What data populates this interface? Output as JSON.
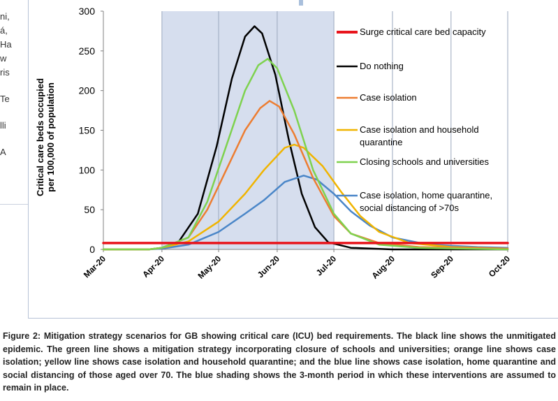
{
  "left_fragments": [
    "ni,",
    "á,",
    "Ha",
    "w",
    "ris",
    "Te",
    "lli",
    "A"
  ],
  "chart_data": {
    "type": "line",
    "title": "",
    "ylabel": "Critical care beds occupied per 100,000 of population",
    "ylabel_lines": [
      "Critical care beds occupied",
      "per 100,000 of population"
    ],
    "xlabel": "",
    "ylim": [
      0,
      300
    ],
    "yticks": [
      0,
      50,
      100,
      150,
      200,
      250,
      300
    ],
    "xlim": [
      "2020-03-01",
      "2020-10-01"
    ],
    "xticks": [
      "Mar-20",
      "Apr-20",
      "May-20",
      "Jun-20",
      "Jul-20",
      "Aug-20",
      "Sep-20",
      "Oct-20"
    ],
    "shaded_period": {
      "start": "2020-04-01",
      "end": "2020-07-01",
      "color": "#d6deee"
    },
    "grid": "vertical at month ticks",
    "legend_position": "right",
    "series": [
      {
        "name": "Surge critical care bed capacity",
        "color": "#e8141c",
        "points": [
          [
            "2020-03-01",
            8
          ],
          [
            "2020-10-01",
            8
          ]
        ]
      },
      {
        "name": "Do nothing",
        "color": "#000000",
        "points": [
          [
            "2020-03-01",
            0
          ],
          [
            "2020-03-25",
            0
          ],
          [
            "2020-04-01",
            2
          ],
          [
            "2020-04-10",
            10
          ],
          [
            "2020-04-20",
            45
          ],
          [
            "2020-04-30",
            130
          ],
          [
            "2020-05-08",
            215
          ],
          [
            "2020-05-15",
            268
          ],
          [
            "2020-05-20",
            281
          ],
          [
            "2020-05-24",
            272
          ],
          [
            "2020-05-31",
            220
          ],
          [
            "2020-06-07",
            140
          ],
          [
            "2020-06-14",
            70
          ],
          [
            "2020-06-21",
            28
          ],
          [
            "2020-06-28",
            9
          ],
          [
            "2020-07-10",
            2
          ],
          [
            "2020-08-01",
            0
          ],
          [
            "2020-10-01",
            0
          ]
        ]
      },
      {
        "name": "Case isolation",
        "color": "#ed7d31",
        "points": [
          [
            "2020-03-01",
            0
          ],
          [
            "2020-03-25",
            0
          ],
          [
            "2020-04-01",
            2
          ],
          [
            "2020-04-15",
            15
          ],
          [
            "2020-04-25",
            50
          ],
          [
            "2020-05-05",
            100
          ],
          [
            "2020-05-15",
            150
          ],
          [
            "2020-05-23",
            178
          ],
          [
            "2020-05-28",
            187
          ],
          [
            "2020-06-02",
            180
          ],
          [
            "2020-06-10",
            145
          ],
          [
            "2020-06-20",
            90
          ],
          [
            "2020-07-01",
            42
          ],
          [
            "2020-07-10",
            20
          ],
          [
            "2020-07-25",
            8
          ],
          [
            "2020-08-15",
            3
          ],
          [
            "2020-10-01",
            1
          ]
        ]
      },
      {
        "name": "Case isolation and household quarantine",
        "color": "#f0b400",
        "points": [
          [
            "2020-03-01",
            0
          ],
          [
            "2020-03-25",
            0
          ],
          [
            "2020-04-01",
            2
          ],
          [
            "2020-04-15",
            10
          ],
          [
            "2020-05-01",
            35
          ],
          [
            "2020-05-15",
            70
          ],
          [
            "2020-05-25",
            100
          ],
          [
            "2020-06-05",
            128
          ],
          [
            "2020-06-10",
            132
          ],
          [
            "2020-06-15",
            128
          ],
          [
            "2020-06-25",
            105
          ],
          [
            "2020-07-05",
            72
          ],
          [
            "2020-07-15",
            42
          ],
          [
            "2020-07-25",
            22
          ],
          [
            "2020-08-10",
            8
          ],
          [
            "2020-09-01",
            3
          ],
          [
            "2020-10-01",
            1
          ]
        ]
      },
      {
        "name": "Closing schools and universities",
        "color": "#7ed24f",
        "points": [
          [
            "2020-03-01",
            0
          ],
          [
            "2020-03-25",
            0
          ],
          [
            "2020-04-01",
            2
          ],
          [
            "2020-04-15",
            15
          ],
          [
            "2020-04-25",
            60
          ],
          [
            "2020-05-05",
            130
          ],
          [
            "2020-05-15",
            200
          ],
          [
            "2020-05-22",
            232
          ],
          [
            "2020-05-27",
            240
          ],
          [
            "2020-06-01",
            228
          ],
          [
            "2020-06-10",
            175
          ],
          [
            "2020-06-20",
            100
          ],
          [
            "2020-07-01",
            45
          ],
          [
            "2020-07-10",
            20
          ],
          [
            "2020-07-25",
            6
          ],
          [
            "2020-08-15",
            2
          ],
          [
            "2020-10-01",
            0
          ]
        ]
      },
      {
        "name": "Case isolation, home quarantine, social distancing of >70s",
        "color": "#4a86c8",
        "points": [
          [
            "2020-03-01",
            0
          ],
          [
            "2020-03-25",
            0
          ],
          [
            "2020-04-01",
            1
          ],
          [
            "2020-04-15",
            6
          ],
          [
            "2020-05-01",
            22
          ],
          [
            "2020-05-15",
            45
          ],
          [
            "2020-05-25",
            62
          ],
          [
            "2020-06-05",
            85
          ],
          [
            "2020-06-15",
            93
          ],
          [
            "2020-06-22",
            88
          ],
          [
            "2020-07-01",
            70
          ],
          [
            "2020-07-10",
            48
          ],
          [
            "2020-07-20",
            30
          ],
          [
            "2020-08-01",
            15
          ],
          [
            "2020-08-20",
            6
          ],
          [
            "2020-09-15",
            3
          ],
          [
            "2020-10-01",
            2
          ]
        ]
      }
    ],
    "legend": [
      {
        "label_lines": [
          "Surge critical care bed capacity"
        ],
        "color": "#e8141c"
      },
      {
        "label_lines": [
          "Do nothing"
        ],
        "color": "#000000"
      },
      {
        "label_lines": [
          "Case isolation"
        ],
        "color": "#ed7d31"
      },
      {
        "label_lines": [
          "Case isolation and household",
          "quarantine"
        ],
        "color": "#f0b400"
      },
      {
        "label_lines": [
          "Closing schools and universities"
        ],
        "color": "#7ed24f"
      },
      {
        "label_lines": [
          "Case isolation, home quarantine,",
          "social distancing of >70s"
        ],
        "color": "#4a86c8"
      }
    ]
  },
  "caption": "Figure 2: Mitigation strategy scenarios for GB showing critical care (ICU) bed requirements. The black line shows the unmitigated epidemic. The green line shows a mitigation strategy incorporating closure of schools and universities; orange line shows case isolation; yellow line shows case isolation and household quarantine; and the blue line shows case isolation, home quarantine and social distancing of those aged over 70. The blue shading shows the 3-month period in which these interventions are assumed to remain in place."
}
